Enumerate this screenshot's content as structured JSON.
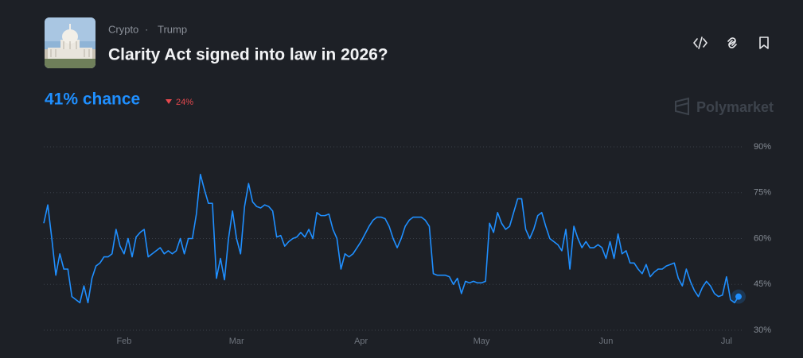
{
  "header": {
    "category": "Crypto",
    "tag": "Trump",
    "title": "Clarity Act signed into law in 2026?",
    "chance": "41% chance",
    "change": "24%",
    "brand": "Polymarket"
  },
  "chart_data": {
    "type": "line",
    "color": "#1f8fff",
    "categories": [
      null,
      null,
      null,
      null,
      null,
      null,
      null,
      null,
      null,
      null,
      null,
      null,
      null,
      null,
      null,
      null,
      null,
      null,
      null,
      null,
      "Feb",
      null,
      null,
      null,
      null,
      null,
      null,
      null,
      null,
      null,
      null,
      null,
      null,
      null,
      null,
      null,
      null,
      null,
      null,
      null,
      null,
      null,
      null,
      null,
      null,
      null,
      null,
      null,
      "Mar",
      null,
      null,
      null,
      null,
      null,
      null,
      null,
      null,
      null,
      null,
      null,
      null,
      null,
      null,
      null,
      null,
      null,
      null,
      null,
      null,
      null,
      null,
      null,
      null,
      null,
      null,
      null,
      null,
      null,
      null,
      "Apr",
      null,
      null,
      null,
      null,
      null,
      null,
      null,
      null,
      null,
      null,
      null,
      null,
      null,
      null,
      null,
      null,
      null,
      null,
      null,
      null,
      null,
      null,
      null,
      null,
      null,
      null,
      null,
      null,
      null,
      "May",
      null,
      null,
      null,
      null,
      null,
      null,
      null,
      null,
      null,
      null,
      null,
      null,
      null,
      null,
      null,
      null,
      null,
      null,
      null,
      null,
      null,
      null,
      null,
      null,
      null,
      null,
      null,
      null,
      null,
      null,
      "Jun",
      null,
      null,
      null,
      null,
      null,
      null,
      null,
      null,
      null,
      null,
      null,
      null,
      null,
      null,
      null,
      null,
      null,
      null,
      null,
      null,
      null,
      null,
      null,
      null,
      null,
      null,
      null,
      null,
      null,
      "Jul",
      null,
      null,
      null
    ],
    "values": [
      65,
      71,
      60,
      48,
      55,
      50,
      50,
      41,
      40,
      39,
      44.5,
      39,
      47,
      51,
      52,
      54,
      54,
      55,
      63,
      57.5,
      55,
      60,
      54,
      60.5,
      62,
      63,
      54,
      55,
      56,
      57,
      55,
      56,
      55,
      56,
      60,
      55,
      60,
      60,
      68,
      81,
      76,
      71.5,
      71.5,
      47,
      53.5,
      46.5,
      60,
      69,
      60,
      55,
      70.5,
      78,
      72,
      70.5,
      70,
      71,
      70.5,
      69,
      60.5,
      61,
      57.5,
      59,
      60,
      60.5,
      62,
      60.5,
      63,
      60,
      68.5,
      67.5,
      67.5,
      68,
      63,
      60,
      50,
      55,
      54,
      55,
      57,
      59,
      61.5,
      64,
      66,
      67,
      67,
      66.5,
      64,
      60,
      57,
      60,
      64,
      66,
      67,
      67,
      67,
      66,
      64,
      48.5,
      48,
      48,
      48,
      47.5,
      45,
      47,
      42,
      46,
      45.5,
      46,
      45.5,
      45.5,
      46,
      65,
      62,
      68.5,
      65,
      63,
      64,
      68.5,
      73,
      73,
      63,
      60,
      63,
      67.5,
      68.5,
      64,
      60,
      59,
      58,
      56,
      63,
      50,
      64,
      60,
      57,
      59,
      57,
      57,
      58,
      57,
      53.5,
      59,
      53.5,
      61.5,
      55,
      56,
      52,
      52,
      50,
      48.5,
      51.5,
      47.5,
      49,
      50,
      50,
      51,
      51.5,
      52,
      47,
      44.5,
      50,
      46,
      43,
      41,
      44,
      46,
      44.5,
      42,
      41,
      41.5,
      47.5,
      40,
      39,
      41
    ],
    "ylim": [
      30,
      90
    ],
    "yticks": [
      {
        "value": 30,
        "label": "30%"
      },
      {
        "value": 45,
        "label": "45%"
      },
      {
        "value": 60,
        "label": "60%"
      },
      {
        "value": 75,
        "label": "75%"
      },
      {
        "value": 90,
        "label": "90%"
      }
    ],
    "grid": true
  }
}
